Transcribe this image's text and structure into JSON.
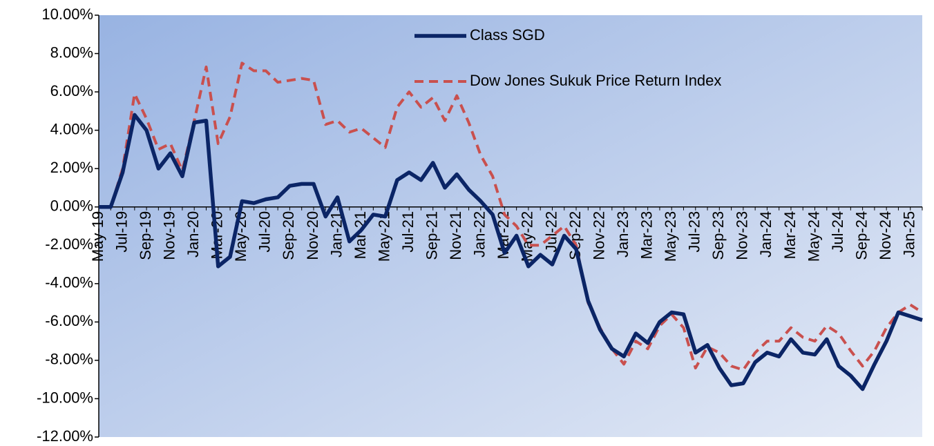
{
  "chart_data": {
    "type": "line",
    "categories": [
      "May-19",
      null,
      "Jul-19",
      null,
      "Sep-19",
      null,
      "Nov-19",
      null,
      "Jan-20",
      null,
      "Mar-20",
      null,
      "May-20",
      null,
      "Jul-20",
      null,
      "Sep-20",
      null,
      "Nov-20",
      null,
      "Jan-21",
      null,
      "Mar-21",
      null,
      "May-21",
      null,
      "Jul-21",
      null,
      "Sep-21",
      null,
      "Nov-21",
      null,
      "Jan-22",
      null,
      "Mar-22",
      null,
      "May-22",
      null,
      "Jul-22",
      null,
      "Sep-22",
      null,
      "Nov-22",
      null,
      "Jan-23",
      null,
      "Mar-23",
      null,
      "May-23",
      null,
      "Jul-23",
      null,
      "Sep-23",
      null,
      "Nov-23",
      null,
      "Jan-24",
      null,
      "Mar-24",
      null,
      "May-24",
      null,
      "Jul-24",
      null,
      "Sep-24",
      null,
      "Nov-24",
      null,
      "Jan-25",
      null
    ],
    "series": [
      {
        "name": "Class SGD",
        "color": "#0b2566",
        "dash": false,
        "values": [
          0,
          0,
          1.8,
          4.8,
          4.0,
          2.0,
          2.8,
          1.6,
          4.4,
          4.5,
          -3.1,
          -2.6,
          0.3,
          0.2,
          0.4,
          0.5,
          1.1,
          1.2,
          1.2,
          -0.5,
          0.5,
          -1.8,
          -1.2,
          -0.4,
          -0.5,
          1.4,
          1.8,
          1.4,
          2.3,
          1.0,
          1.7,
          0.9,
          0.3,
          -0.4,
          -2.4,
          -1.5,
          -3.1,
          -2.5,
          -3.0,
          -1.5,
          -2.2,
          -4.9,
          -6.4,
          -7.4,
          -7.8,
          -6.6,
          -7.1,
          -6.0,
          -5.5,
          -5.6,
          -7.6,
          -7.2,
          -8.4,
          -9.3,
          -9.2,
          -8.1,
          -7.6,
          -7.8,
          -6.9,
          -7.6,
          -7.7,
          -6.9,
          -8.3,
          -8.8,
          -9.5,
          -8.2,
          -7.0,
          -5.5,
          -5.7,
          -5.9
        ]
      },
      {
        "name": "Dow Jones Sukuk Price Return Index",
        "color": "#c9504e",
        "dash": true,
        "values": [
          0,
          0,
          2.0,
          5.9,
          4.6,
          3.0,
          3.3,
          1.9,
          4.5,
          7.3,
          3.3,
          4.7,
          7.5,
          7.1,
          7.1,
          6.5,
          6.6,
          6.7,
          6.6,
          4.3,
          4.5,
          3.9,
          4.1,
          3.6,
          3.1,
          5.2,
          6.0,
          5.2,
          5.7,
          4.5,
          5.8,
          4.4,
          2.7,
          1.6,
          -0.4,
          -1.0,
          -2.0,
          -2.0,
          -1.5,
          -1.0,
          -2.0,
          -5.0,
          -6.3,
          -7.4,
          -8.2,
          -7.0,
          -7.4,
          -6.2,
          -5.6,
          -6.3,
          -8.4,
          -7.3,
          -7.6,
          -8.3,
          -8.5,
          -7.6,
          -7.0,
          -7.0,
          -6.3,
          -6.8,
          -7.0,
          -6.2,
          -6.6,
          -7.5,
          -8.3,
          -7.5,
          -6.3,
          -5.5,
          -5.1,
          -5.5
        ]
      }
    ],
    "ylim": [
      -12,
      10
    ],
    "yticks": [
      {
        "value": 10,
        "label": "10.00%"
      },
      {
        "value": 8,
        "label": "8.00%"
      },
      {
        "value": 6,
        "label": "6.00%"
      },
      {
        "value": 4,
        "label": "4.00%"
      },
      {
        "value": 2,
        "label": "2.00%"
      },
      {
        "value": 0,
        "label": "0.00%"
      },
      {
        "value": -2,
        "label": "-2.00%"
      },
      {
        "value": -4,
        "label": "-4.00%"
      },
      {
        "value": -6,
        "label": "-6.00%"
      },
      {
        "value": -8,
        "label": "-8.00%"
      },
      {
        "value": -10,
        "label": "-10.00%"
      },
      {
        "value": -12,
        "label": "-12.00%"
      }
    ],
    "grid": false,
    "legend": "top"
  }
}
